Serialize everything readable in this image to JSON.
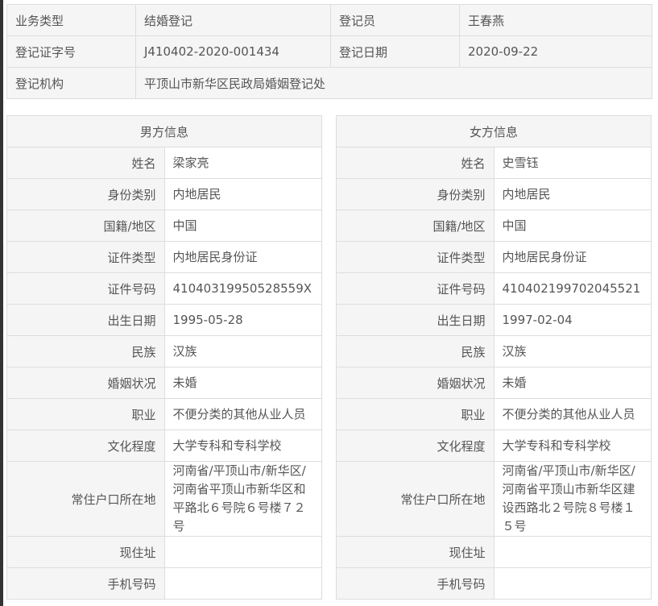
{
  "top": {
    "rows": [
      [
        "业务类型",
        "结婚登记",
        "登记员",
        "王春燕"
      ],
      [
        "登记证字号",
        "J410402-2020-001434",
        "登记日期",
        "2020-09-22"
      ],
      [
        "登记机构",
        "平顶山市新华区民政局婚姻登记处"
      ]
    ]
  },
  "labels": [
    "姓名",
    "身份类别",
    "国籍/地区",
    "证件类型",
    "证件号码",
    "出生日期",
    "民族",
    "婚姻状况",
    "职业",
    "文化程度",
    "常住户口所在地",
    "现住址",
    "手机号码"
  ],
  "male": {
    "title": "男方信息",
    "values": [
      "梁家亮",
      "内地居民",
      "中国",
      "内地居民身份证",
      "41040319950528559X",
      "1995-05-28",
      "汉族",
      "未婚",
      "不便分类的其他从业人员",
      "大学专科和专科学校",
      "河南省/平顶山市/新华区/河南省平顶山市新华区和平路北６号院６号楼７２号",
      "",
      ""
    ]
  },
  "female": {
    "title": "女方信息",
    "values": [
      "史雪钰",
      "内地居民",
      "中国",
      "内地居民身份证",
      "410402199702045521",
      "1997-02-04",
      "汉族",
      "未婚",
      "不便分类的其他从业人员",
      "大学专科和专科学校",
      "河南省/平顶山市/新华区/河南省平顶山市新华区建设西路北２号院８号楼１５号",
      "",
      ""
    ]
  }
}
